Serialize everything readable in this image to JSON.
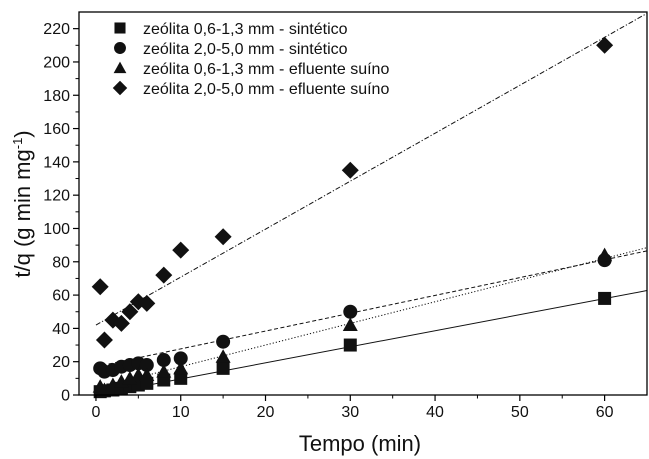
{
  "chart_data": {
    "type": "scatter",
    "xlabel": "Tempo (min)",
    "ylabel": "t/q (g min mg",
    "ylabel_sup": "-1",
    "ylabel_close": ")",
    "xlim": [
      -2,
      65
    ],
    "ylim": [
      0,
      230
    ],
    "xticks": [
      0,
      10,
      20,
      30,
      40,
      50,
      60
    ],
    "yticks": [
      0,
      20,
      40,
      60,
      80,
      100,
      120,
      140,
      160,
      180,
      200,
      220
    ],
    "legend_position": "top-left",
    "grid": false,
    "series": [
      {
        "name": "zeólita 0,6-1,3 mm - sintético",
        "marker": "square",
        "points": [
          [
            0.5,
            2
          ],
          [
            1,
            2.5
          ],
          [
            2,
            3
          ],
          [
            3,
            4
          ],
          [
            4,
            5
          ],
          [
            5,
            6
          ],
          [
            6,
            7
          ],
          [
            8,
            9
          ],
          [
            10,
            10
          ],
          [
            15,
            16
          ],
          [
            30,
            30
          ],
          [
            60,
            58
          ]
        ],
        "fit": {
          "slope": 0.965,
          "intercept": 0,
          "style": "solid"
        }
      },
      {
        "name": "zeólita 2,0-5,0 mm - sintético",
        "marker": "circle",
        "points": [
          [
            0.5,
            16
          ],
          [
            1,
            14
          ],
          [
            2,
            15
          ],
          [
            3,
            17
          ],
          [
            4,
            18
          ],
          [
            5,
            19
          ],
          [
            6,
            18
          ],
          [
            8,
            21
          ],
          [
            10,
            22
          ],
          [
            15,
            32
          ],
          [
            30,
            50
          ],
          [
            60,
            81
          ]
        ],
        "fit": {
          "slope": 1.07,
          "intercept": 17,
          "style": "dashed"
        }
      },
      {
        "name": "zeólita 0,6-1,3 mm - efluente suíno",
        "marker": "triangle",
        "points": [
          [
            0.5,
            5
          ],
          [
            1,
            3
          ],
          [
            2,
            6
          ],
          [
            3,
            8
          ],
          [
            4,
            10
          ],
          [
            5,
            12
          ],
          [
            6,
            12
          ],
          [
            8,
            14
          ],
          [
            10,
            16
          ],
          [
            15,
            23
          ],
          [
            30,
            42
          ],
          [
            60,
            84
          ]
        ],
        "fit": {
          "slope": 1.3,
          "intercept": 4,
          "style": "dotted"
        }
      },
      {
        "name": "zeólita 2,0-5,0 mm - efluente suíno",
        "marker": "diamond",
        "points": [
          [
            0.5,
            65
          ],
          [
            1,
            33
          ],
          [
            2,
            45
          ],
          [
            3,
            43
          ],
          [
            4,
            50
          ],
          [
            5,
            56
          ],
          [
            6,
            55
          ],
          [
            8,
            72
          ],
          [
            10,
            87
          ],
          [
            15,
            95
          ],
          [
            30,
            135
          ],
          [
            60,
            210
          ]
        ],
        "fit": {
          "slope": 2.88,
          "intercept": 42,
          "style": "dashdot"
        }
      }
    ]
  }
}
